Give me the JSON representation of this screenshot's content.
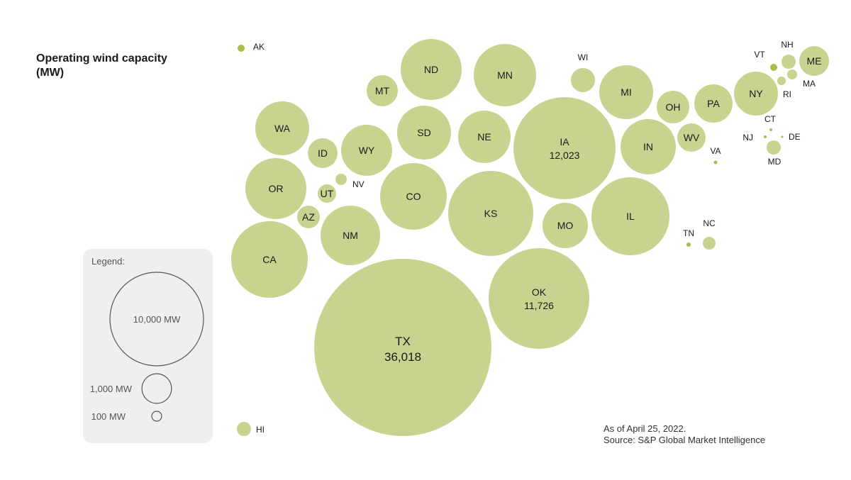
{
  "title": "Operating wind capacity (MW)",
  "footnote": {
    "date": "As of April 25, 2022.",
    "source": "Source: S&P Global Market Intelligence"
  },
  "colors": {
    "bubble": "#c6d48f",
    "small_dot": "#a8bd48",
    "legend_outline": "#555555"
  },
  "legend": {
    "title": "Legend:",
    "items": [
      {
        "label": "10,000 MW",
        "value": 10000
      },
      {
        "label": "1,000 MW",
        "value": 1000
      },
      {
        "label": "100 MW",
        "value": 100
      }
    ]
  },
  "chart_data": {
    "type": "bubble-map",
    "title": "Operating wind capacity (MW)",
    "units": "MW",
    "points": [
      {
        "state": "AK",
        "value": ""
      },
      {
        "state": "HI",
        "value": ""
      },
      {
        "state": "ND",
        "value": ""
      },
      {
        "state": "MN",
        "value": ""
      },
      {
        "state": "MT",
        "value": ""
      },
      {
        "state": "WI",
        "value": ""
      },
      {
        "state": "MI",
        "value": ""
      },
      {
        "state": "VT",
        "value": ""
      },
      {
        "state": "NH",
        "value": ""
      },
      {
        "state": "ME",
        "value": ""
      },
      {
        "state": "MA",
        "value": ""
      },
      {
        "state": "RI",
        "value": ""
      },
      {
        "state": "NY",
        "value": ""
      },
      {
        "state": "PA",
        "value": ""
      },
      {
        "state": "OH",
        "value": ""
      },
      {
        "state": "CT",
        "value": ""
      },
      {
        "state": "NJ",
        "value": ""
      },
      {
        "state": "DE",
        "value": ""
      },
      {
        "state": "MD",
        "value": ""
      },
      {
        "state": "WV",
        "value": ""
      },
      {
        "state": "VA",
        "value": ""
      },
      {
        "state": "WA",
        "value": ""
      },
      {
        "state": "SD",
        "value": ""
      },
      {
        "state": "NE",
        "value": ""
      },
      {
        "state": "IA",
        "value": "12,023"
      },
      {
        "state": "IN",
        "value": ""
      },
      {
        "state": "ID",
        "value": ""
      },
      {
        "state": "WY",
        "value": ""
      },
      {
        "state": "OR",
        "value": ""
      },
      {
        "state": "UT",
        "value": ""
      },
      {
        "state": "NV",
        "value": ""
      },
      {
        "state": "CO",
        "value": ""
      },
      {
        "state": "KS",
        "value": ""
      },
      {
        "state": "IL",
        "value": ""
      },
      {
        "state": "MO",
        "value": ""
      },
      {
        "state": "AZ",
        "value": ""
      },
      {
        "state": "NM",
        "value": ""
      },
      {
        "state": "TN",
        "value": ""
      },
      {
        "state": "NC",
        "value": ""
      },
      {
        "state": "CA",
        "value": ""
      },
      {
        "state": "OK",
        "value": "11,726"
      },
      {
        "state": "TX",
        "value": "36,018"
      }
    ]
  }
}
